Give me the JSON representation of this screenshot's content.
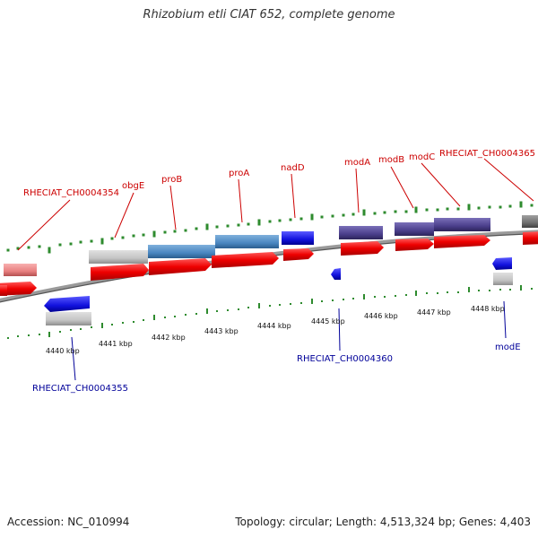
{
  "title": "Rhizobium etli CIAT 652, complete genome",
  "accession": "Accession: NC_010994",
  "summary": "Topology: circular; Length: 4,513,324 bp; Genes: 4,403",
  "colors": {
    "cds": "#ee0000",
    "gene_grey": "#c8c8c8",
    "gene_steel": "#4a86c0",
    "gene_blue": "#1111dd",
    "gene_purple": "#4b3f8c",
    "gene_pink": "#e88080",
    "gene_dark": "#707070",
    "tick": "#2e8b2e",
    "backbone": "#777777"
  },
  "genes_top": [
    "RHECIAT_CH0004354",
    "obgE",
    "proB",
    "proA",
    "nadD",
    "modA",
    "modB",
    "modC",
    "RHECIAT_CH0004365"
  ],
  "genes_bottom": [
    "RHECIAT_CH0004355",
    "RHECIAT_CH0004360",
    "modE"
  ],
  "kbp_labels": [
    "4440 kbp",
    "4441 kbp",
    "4442 kbp",
    "4443 kbp",
    "4444 kbp",
    "4445 kbp",
    "4446 kbp",
    "4447 kbp",
    "4448 kbp"
  ]
}
